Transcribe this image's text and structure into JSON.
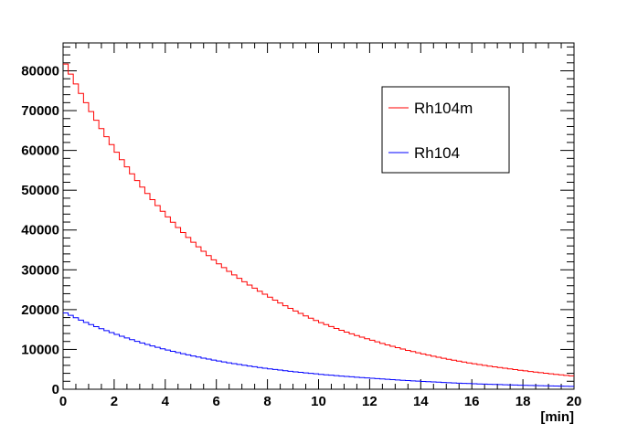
{
  "chart_data": {
    "type": "line",
    "title": "",
    "xlabel": "[min]",
    "ylabel": "",
    "xlim": [
      0,
      20
    ],
    "ylim": [
      0,
      87000
    ],
    "x_ticks": [
      "0",
      "2",
      "4",
      "6",
      "8",
      "10",
      "12",
      "14",
      "16",
      "18",
      "20"
    ],
    "y_ticks": [
      "0",
      "10000",
      "20000",
      "30000",
      "40000",
      "50000",
      "60000",
      "70000",
      "80000"
    ],
    "step": "histogram",
    "legend_position": "top-right",
    "grid": false,
    "series": [
      {
        "name": "Rh104m",
        "color": "#ff0000",
        "x": [
          0,
          2,
          4,
          6,
          8,
          10,
          12,
          14,
          16,
          18,
          20
        ],
        "values": [
          83000,
          60500,
          44000,
          32000,
          23500,
          17000,
          12500,
          9000,
          6500,
          4700,
          3300
        ]
      },
      {
        "name": "Rh104",
        "color": "#0000ff",
        "x": [
          0,
          2,
          4,
          6,
          8,
          10,
          12,
          14,
          16,
          18,
          20
        ],
        "values": [
          19500,
          14000,
          10000,
          7200,
          5200,
          3800,
          2800,
          2000,
          1400,
          1000,
          700
        ]
      }
    ]
  }
}
